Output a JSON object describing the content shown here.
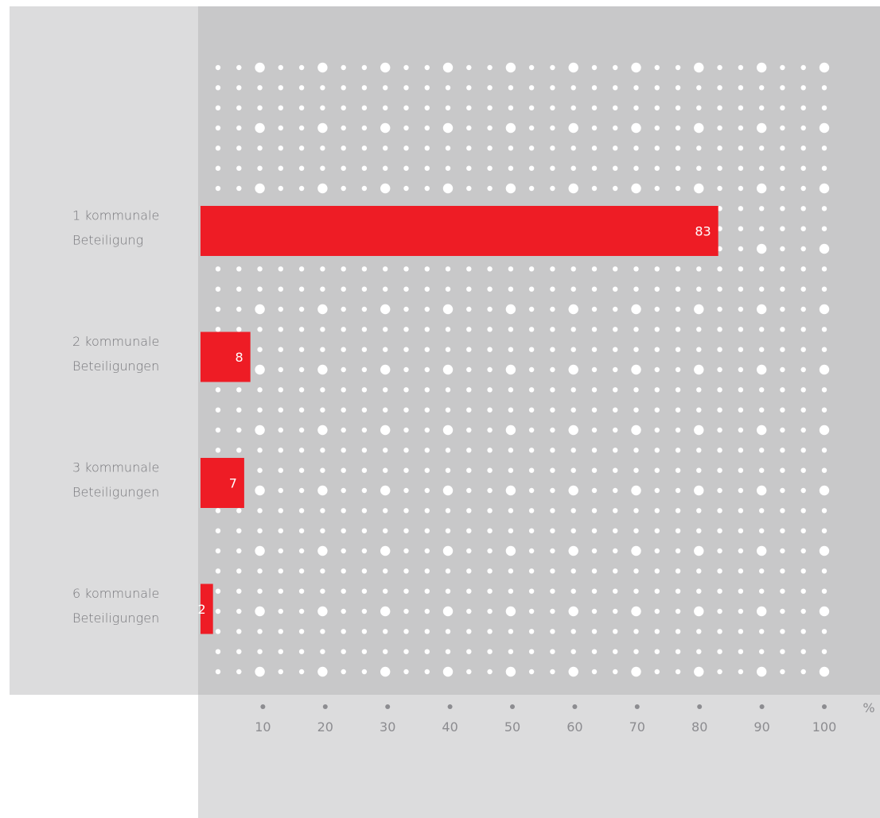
{
  "chart_data": {
    "type": "bar",
    "orientation": "horizontal",
    "categories": [
      [
        "1 kommunale",
        "Beteiligung"
      ],
      [
        "2 kommunale",
        "Beteiligungen"
      ],
      [
        "3 kommunale",
        "Beteiligungen"
      ],
      [
        "6 kommunale",
        "Beteiligungen"
      ]
    ],
    "values": [
      83,
      8,
      7,
      2
    ],
    "value_labels": [
      "83",
      "8",
      "7",
      "2"
    ],
    "xlim": [
      0,
      100
    ],
    "x_ticks": [
      10,
      20,
      30,
      40,
      50,
      60,
      70,
      80,
      90,
      100
    ],
    "x_tick_labels": [
      "10",
      "20",
      "30",
      "40",
      "50",
      "60",
      "70",
      "80",
      "90",
      "100"
    ],
    "x_unit": "%",
    "grid": "dots",
    "legend": "none"
  },
  "colors": {
    "bar": "#ee1c25",
    "bar_text": "#ffffff",
    "plot_background": "#c8c8c9",
    "label_background": "#dcdcdd",
    "grid_dots": "#ffffff",
    "category_text": "#76767a",
    "tick_text": "#8c8c90",
    "tick_marker": "#8c8c90"
  }
}
